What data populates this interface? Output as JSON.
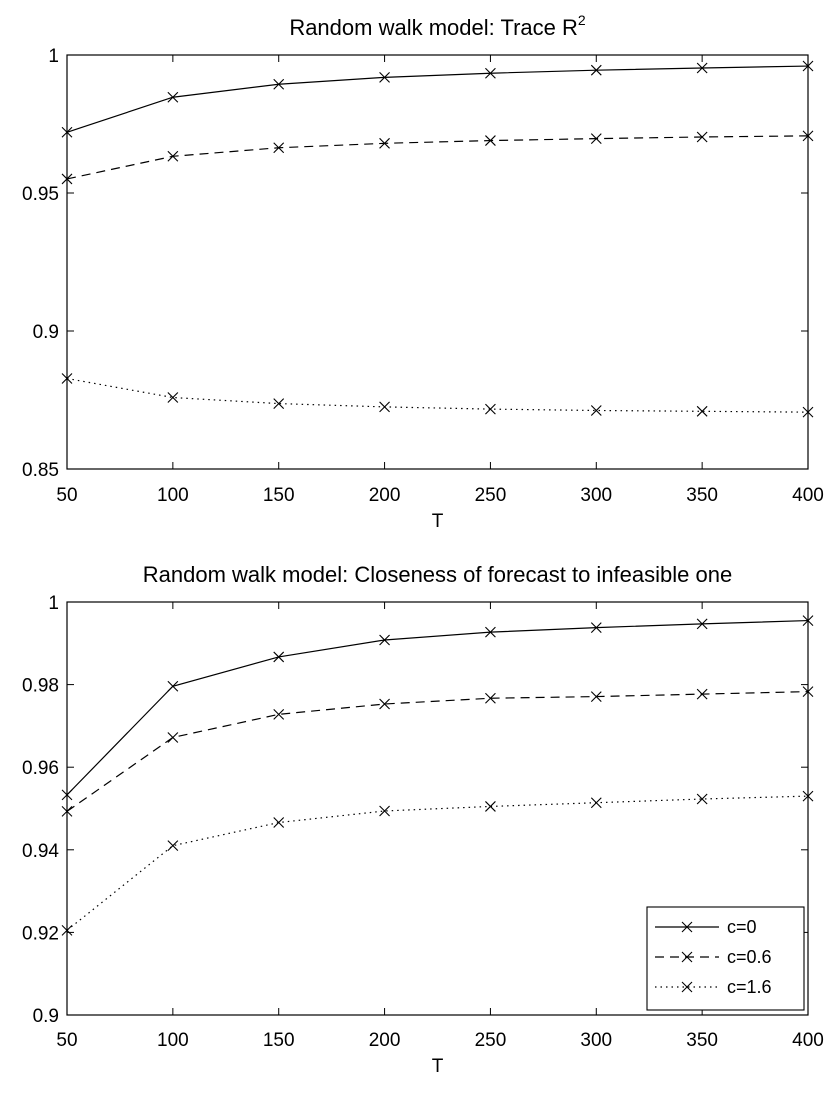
{
  "chart_data": [
    {
      "type": "line",
      "title_main": "Random walk model: Trace R",
      "title_sup": "2",
      "xlabel": "T",
      "ylabel": "",
      "x": [
        50,
        100,
        150,
        200,
        250,
        300,
        350,
        400
      ],
      "xlim": [
        50,
        400
      ],
      "ylim": [
        0.85,
        1.0
      ],
      "xticks": [
        "50",
        "100",
        "150",
        "200",
        "250",
        "300",
        "350",
        "400"
      ],
      "yticks": [
        "0.85",
        "0.9",
        "0.95",
        "1"
      ],
      "ytick_values": [
        0.85,
        0.9,
        0.95,
        1.0
      ],
      "series": [
        {
          "name": "c=0",
          "style": "solid",
          "values": [
            0.972,
            0.9847,
            0.9894,
            0.9919,
            0.9934,
            0.9945,
            0.9953,
            0.996
          ]
        },
        {
          "name": "c=0.6",
          "style": "dashed",
          "values": [
            0.9551,
            0.9633,
            0.9664,
            0.968,
            0.969,
            0.9697,
            0.9703,
            0.9707
          ]
        },
        {
          "name": "c=1.6",
          "style": "dotted",
          "values": [
            0.8828,
            0.8759,
            0.8737,
            0.8725,
            0.8717,
            0.8712,
            0.8709,
            0.8706
          ]
        }
      ],
      "legend": null
    },
    {
      "type": "line",
      "title_main": "Random walk model: Closeness of forecast to infeasible one",
      "title_sup": "",
      "xlabel": "T",
      "ylabel": "",
      "x": [
        50,
        100,
        150,
        200,
        250,
        300,
        350,
        400
      ],
      "xlim": [
        50,
        400
      ],
      "ylim": [
        0.9,
        1.0
      ],
      "xticks": [
        "50",
        "100",
        "150",
        "200",
        "250",
        "300",
        "350",
        "400"
      ],
      "yticks": [
        "0.9",
        "0.92",
        "0.94",
        "0.96",
        "0.98",
        "1"
      ],
      "ytick_values": [
        0.9,
        0.92,
        0.94,
        0.96,
        0.98,
        1.0
      ],
      "series": [
        {
          "name": "c=0",
          "style": "solid",
          "values": [
            0.9533,
            0.9796,
            0.9867,
            0.9908,
            0.9927,
            0.9938,
            0.9947,
            0.9955
          ]
        },
        {
          "name": "c=0.6",
          "style": "dashed",
          "values": [
            0.9493,
            0.9672,
            0.9728,
            0.9753,
            0.9767,
            0.9771,
            0.9777,
            0.9783
          ]
        },
        {
          "name": "c=1.6",
          "style": "dotted",
          "values": [
            0.9205,
            0.941,
            0.9466,
            0.9494,
            0.9505,
            0.9514,
            0.9523,
            0.953
          ]
        }
      ],
      "legend": {
        "position": "bottom-right",
        "entries": [
          "c=0",
          "c=0.6",
          "c=1.6"
        ]
      }
    }
  ]
}
